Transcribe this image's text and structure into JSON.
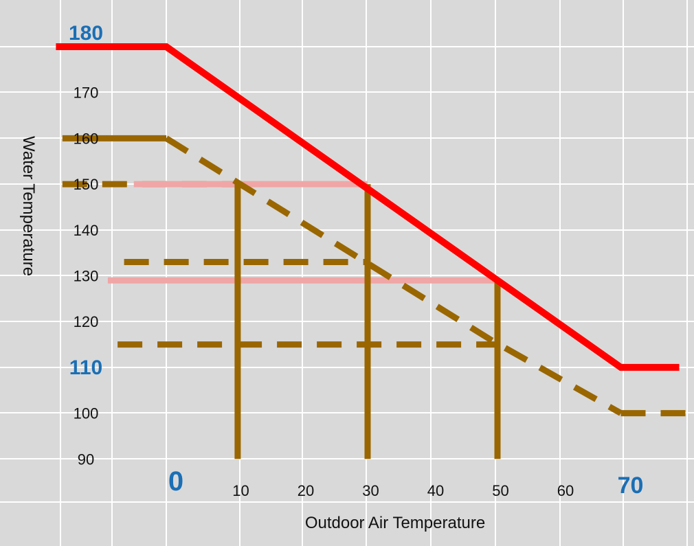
{
  "chart_data": {
    "type": "line",
    "xlabel": "Outdoor Air Temperature",
    "ylabel": "Water Temperature",
    "xlim": [
      -16,
      80
    ],
    "ylim": [
      80,
      190
    ],
    "grid": true,
    "x_ticks": [
      {
        "value": 0,
        "label": "0",
        "highlight": true
      },
      {
        "value": 10,
        "label": "10",
        "highlight": false
      },
      {
        "value": 20,
        "label": "20",
        "highlight": false
      },
      {
        "value": 30,
        "label": "30",
        "highlight": false
      },
      {
        "value": 40,
        "label": "40",
        "highlight": false
      },
      {
        "value": 50,
        "label": "50",
        "highlight": false
      },
      {
        "value": 60,
        "label": "60",
        "highlight": false
      },
      {
        "value": 70,
        "label": "70",
        "highlight": true
      }
    ],
    "y_ticks": [
      {
        "value": 180,
        "label": "180",
        "highlight": true
      },
      {
        "value": 170,
        "label": "170",
        "highlight": false
      },
      {
        "value": 160,
        "label": "160",
        "highlight": false
      },
      {
        "value": 150,
        "label": "150",
        "highlight": false
      },
      {
        "value": 140,
        "label": "140",
        "highlight": false
      },
      {
        "value": 130,
        "label": "130",
        "highlight": false
      },
      {
        "value": 120,
        "label": "120",
        "highlight": false
      },
      {
        "value": 110,
        "label": "110",
        "highlight": true
      },
      {
        "value": 100,
        "label": "100",
        "highlight": false
      },
      {
        "value": 90,
        "label": "90",
        "highlight": false
      }
    ],
    "series": [
      {
        "style": "solid",
        "color": "#ff0000",
        "x": [
          -17,
          0,
          70,
          79
        ],
        "y": [
          180,
          180,
          110,
          110
        ]
      },
      {
        "style": "solid",
        "color": "#996600",
        "x": [
          -16,
          0
        ],
        "y": [
          160,
          160
        ]
      },
      {
        "style": "dashed",
        "color": "#996600",
        "x": [
          0,
          50,
          70
        ],
        "y": [
          160,
          116,
          100
        ]
      },
      {
        "style": "dashed",
        "color": "#996600",
        "x": [
          70,
          80
        ],
        "y": [
          100,
          100
        ]
      }
    ],
    "reference_lines": [
      {
        "style": "dashed",
        "color": "#996600",
        "x": [
          -16,
          11
        ],
        "y": [
          150,
          150
        ]
      },
      {
        "style": "dashed",
        "color": "#996600",
        "x": [
          -6.5,
          31
        ],
        "y": [
          133,
          133
        ]
      },
      {
        "style": "dashed",
        "color": "#996600",
        "x": [
          -7.5,
          51
        ],
        "y": [
          115,
          115
        ]
      },
      {
        "style": "solid",
        "color": "#f0a6a6",
        "x": [
          -5,
          31
        ],
        "y": [
          150,
          150
        ]
      },
      {
        "style": "solid",
        "color": "#f0a6a6",
        "x": [
          -9,
          51
        ],
        "y": [
          129,
          129
        ]
      },
      {
        "style": "solid",
        "color": "#996600",
        "x": [
          11,
          11
        ],
        "y": [
          150,
          90
        ]
      },
      {
        "style": "solid",
        "color": "#996600",
        "x": [
          31,
          31
        ],
        "y": [
          150,
          90
        ]
      },
      {
        "style": "solid",
        "color": "#996600",
        "x": [
          51,
          51
        ],
        "y": [
          129,
          90
        ]
      }
    ],
    "colors": {
      "background": "#d9d9d9",
      "grid": "#ffffff",
      "tick_text": "#111111",
      "highlight_text": "#1a6fb5"
    }
  }
}
